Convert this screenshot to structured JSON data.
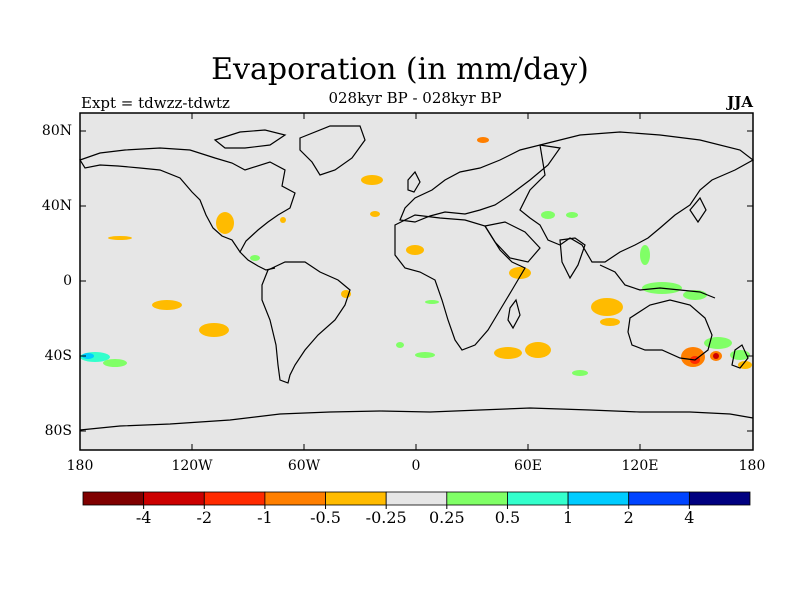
{
  "title": "Evaporation (in mm/day)",
  "subtitle": "028kyr BP - 028kyr BP",
  "left_label": "Expt = tdwzz-tdwtz",
  "right_label": "JJA",
  "map": {
    "lat_ticks": [
      "80N",
      "40N",
      "0",
      "40S",
      "80S"
    ],
    "lon_ticks": [
      "180",
      "120W",
      "60W",
      "0",
      "60E",
      "120E",
      "180"
    ],
    "background_color": "#e6e6e6"
  },
  "colorbar": {
    "colors": [
      "#800000",
      "#cc0000",
      "#ff2a00",
      "#ff7f00",
      "#ffbb00",
      "#e6e6e6",
      "#80ff66",
      "#33ffcc",
      "#00ccff",
      "#0044ff",
      "#000080"
    ],
    "labels": [
      "-4",
      "-2",
      "-1",
      "-0.5",
      "-0.25",
      "0.25",
      "0.5",
      "1",
      "2",
      "4"
    ]
  }
}
